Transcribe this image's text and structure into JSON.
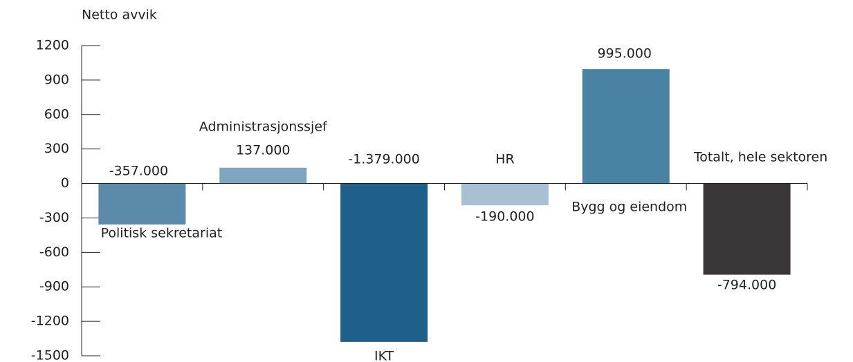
{
  "chart_data": {
    "type": "bar",
    "y_label": "Netto avvik",
    "categories": [
      "Politisk sekretariat",
      "Administrasjonssjef",
      "IKT",
      "HR",
      "Bygg og eiendom",
      "Totalt, hele sektoren"
    ],
    "values": [
      -357,
      137,
      -1379,
      -190,
      995,
      -794
    ],
    "value_labels": [
      "-357.000",
      "137.000",
      "-1.379.000",
      "-190.000",
      "995.000",
      "-794.000"
    ],
    "colors": [
      "#5b8aab",
      "#7fa6bf",
      "#1f5f8b",
      "#a7c1d3",
      "#4a82a3",
      "#3a3536"
    ],
    "ylim": [
      -1500,
      1200
    ],
    "yticks": [
      -1500,
      -1200,
      -900,
      -600,
      -300,
      0,
      300,
      600,
      900,
      1200
    ]
  }
}
